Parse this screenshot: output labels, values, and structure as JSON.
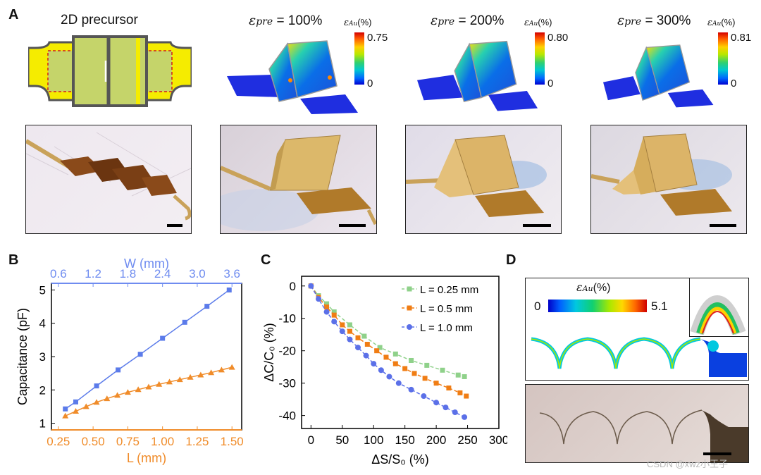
{
  "panels": {
    "a": "A",
    "b": "B",
    "c": "C",
    "d": "D"
  },
  "panel_a": {
    "precursor_title": "2D precursor",
    "sims": [
      {
        "eps_label": "pre",
        "eq": "= 100%",
        "cb_max": "0.75",
        "cb_min": "0"
      },
      {
        "eps_label": "pre",
        "eq": "= 200%",
        "cb_max": "0.80",
        "cb_min": "0"
      },
      {
        "eps_label": "pre",
        "eq": "= 300%",
        "cb_max": "0.81",
        "cb_min": "0"
      }
    ],
    "cb_title_sub": "Au",
    "cb_title_unit": "(%)"
  },
  "panel_d": {
    "cb_title_sub": "Au",
    "cb_title_unit": "(%)",
    "cb_min": "0",
    "cb_max": "5.1",
    "watermark": "CSDN @xwz小王子"
  },
  "chart_data": [
    {
      "type": "line",
      "ylabel": "Capacitance (pF)",
      "xlabel": "L (mm)",
      "x2label": "W (mm)",
      "x_ticks": [
        "0.25",
        "0.50",
        "0.75",
        "1.00",
        "1.25",
        "1.50"
      ],
      "x2_ticks": [
        "0.6",
        "1.2",
        "1.8",
        "2.4",
        "3.0",
        "3.6"
      ],
      "y_ticks": [
        "1",
        "2",
        "3",
        "4",
        "5"
      ],
      "xlim": [
        0.2,
        1.57
      ],
      "ylim": [
        0.8,
        5.2
      ],
      "series": [
        {
          "axis": "W",
          "color": "#5b7bea",
          "marker": "square",
          "x": [
            0.3,
            0.375,
            0.525,
            0.68,
            0.84,
            1.0,
            1.16,
            1.32,
            1.48
          ],
          "y": [
            1.43,
            1.64,
            2.12,
            2.6,
            3.07,
            3.55,
            4.03,
            4.51,
            5.0
          ]
        },
        {
          "axis": "L",
          "color": "#f08c2a",
          "marker": "triangle",
          "x": [
            0.3,
            0.375,
            0.45,
            0.525,
            0.6,
            0.675,
            0.75,
            0.825,
            0.9,
            0.975,
            1.05,
            1.125,
            1.2,
            1.275,
            1.35,
            1.425,
            1.5
          ],
          "y": [
            1.22,
            1.36,
            1.5,
            1.63,
            1.74,
            1.84,
            1.93,
            2.01,
            2.09,
            2.17,
            2.24,
            2.31,
            2.38,
            2.45,
            2.52,
            2.6,
            2.68
          ]
        }
      ]
    },
    {
      "type": "line",
      "xlabel": "ΔS/S₀ (%)",
      "ylabel": "ΔC/C₀ (%)",
      "x_ticks": [
        "0",
        "50",
        "100",
        "150",
        "200",
        "250",
        "300"
      ],
      "y_ticks": [
        "0",
        "-10",
        "-20",
        "-30",
        "-40"
      ],
      "xlim": [
        -15,
        300
      ],
      "ylim": [
        -44,
        3
      ],
      "legend_position": "top-right",
      "series": [
        {
          "name": "L = 0.25 mm",
          "color": "#8fd18a",
          "marker": "square",
          "x": [
            0,
            12,
            25,
            37,
            62,
            85,
            110,
            135,
            160,
            185,
            210,
            235,
            245
          ],
          "y": [
            0,
            -3,
            -5.5,
            -8,
            -12,
            -15.5,
            -19,
            -21,
            -23,
            -24.5,
            -26,
            -27.5,
            -28
          ]
        },
        {
          "name": "L = 0.5 mm",
          "color": "#f07d14",
          "marker": "square",
          "x": [
            0,
            12,
            25,
            37,
            50,
            62,
            75,
            90,
            105,
            120,
            135,
            150,
            165,
            182,
            200,
            220,
            238,
            248
          ],
          "y": [
            0,
            -3.5,
            -6.5,
            -9,
            -12,
            -14,
            -16,
            -18,
            -20,
            -22,
            -24,
            -25.5,
            -27,
            -28.5,
            -30,
            -31.5,
            -33,
            -34
          ]
        },
        {
          "name": "L = 1.0 mm",
          "color": "#5b70e8",
          "marker": "circle",
          "x": [
            0,
            12,
            25,
            37,
            50,
            62,
            75,
            88,
            100,
            112,
            125,
            140,
            160,
            180,
            200,
            215,
            230,
            245
          ],
          "y": [
            0,
            -4,
            -8,
            -11,
            -14,
            -16.5,
            -19,
            -21.5,
            -24,
            -26,
            -28,
            -30,
            -32,
            -34,
            -36,
            -37.5,
            -39,
            -40.5
          ]
        }
      ]
    }
  ]
}
